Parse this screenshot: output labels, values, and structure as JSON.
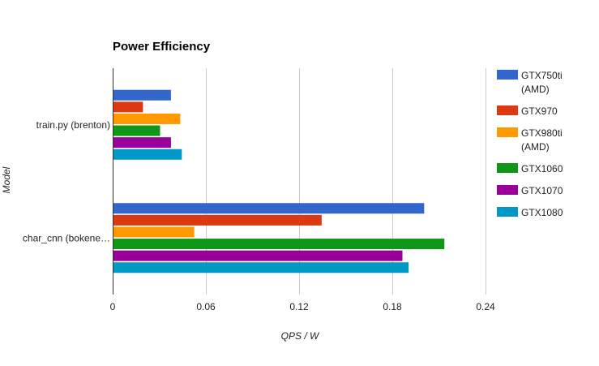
{
  "chart_data": {
    "type": "bar",
    "orientation": "horizontal",
    "title": "Power Efficiency",
    "xlabel": "QPS / W",
    "ylabel": "Model",
    "xlim": [
      0,
      0.24
    ],
    "xticks": [
      0,
      0.06,
      0.12,
      0.18,
      0.24
    ],
    "xtick_labels": [
      "0",
      "0.06",
      "0.12",
      "0.18",
      "0.24"
    ],
    "grid": true,
    "legend_position": "right",
    "categories": [
      "train.py (brenton)",
      "char_cnn (bokene…"
    ],
    "series": [
      {
        "name": "GTX750ti (AMD)",
        "legend_lines": [
          "GTX750ti",
          "(AMD)"
        ],
        "color": "#3366cc",
        "values": [
          0.037,
          0.2
        ]
      },
      {
        "name": "GTX970",
        "legend_lines": [
          "GTX970"
        ],
        "color": "#dc3912",
        "values": [
          0.019,
          0.134
        ]
      },
      {
        "name": "GTX980ti (AMD)",
        "legend_lines": [
          "GTX980ti",
          "(AMD)"
        ],
        "color": "#ff9900",
        "values": [
          0.043,
          0.052
        ]
      },
      {
        "name": "GTX1060",
        "legend_lines": [
          "GTX1060"
        ],
        "color": "#109618",
        "values": [
          0.03,
          0.213
        ]
      },
      {
        "name": "GTX1070",
        "legend_lines": [
          "GTX1070"
        ],
        "color": "#990099",
        "values": [
          0.037,
          0.186
        ]
      },
      {
        "name": "GTX1080",
        "legend_lines": [
          "GTX1080"
        ],
        "color": "#0099c6",
        "values": [
          0.044,
          0.19
        ]
      }
    ]
  }
}
